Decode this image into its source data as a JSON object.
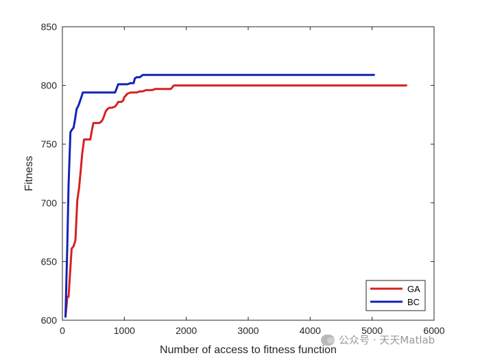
{
  "chart_data": {
    "type": "line",
    "title": "",
    "xlabel": "Number of access to fitness function",
    "ylabel": "Fitness",
    "xlim": [
      0,
      6000
    ],
    "ylim": [
      600,
      850
    ],
    "xticks": [
      0,
      1000,
      2000,
      3000,
      4000,
      5000,
      6000
    ],
    "yticks": [
      600,
      650,
      700,
      750,
      800,
      850
    ],
    "grid": false,
    "legend_position": "bottom-right",
    "series": [
      {
        "name": "GA",
        "color": "#d62020",
        "x": [
          50,
          80,
          100,
          130,
          150,
          180,
          210,
          240,
          270,
          300,
          320,
          350,
          370,
          400,
          420,
          450,
          480,
          500,
          520,
          550,
          580,
          600,
          640,
          660,
          700,
          730,
          760,
          800,
          850,
          880,
          900,
          950,
          980,
          1000,
          1050,
          1100,
          1130,
          1150,
          1200,
          1250,
          1300,
          1350,
          1400,
          1450,
          1500,
          1550,
          1600,
          1650,
          1700,
          1750,
          1800,
          5550
        ],
        "y": [
          603,
          620,
          620,
          645,
          661,
          663,
          668,
          702,
          713,
          730,
          742,
          754,
          754,
          754,
          754,
          754,
          763,
          768,
          768,
          768,
          768,
          768,
          770,
          772,
          778,
          780,
          781,
          781,
          782,
          784,
          786,
          786,
          787,
          790,
          793,
          794,
          794,
          794,
          794,
          795,
          795,
          796,
          796,
          796,
          797,
          797,
          797,
          797,
          797,
          797,
          800,
          800
        ]
      },
      {
        "name": "BC",
        "color": "#1022b8",
        "x": [
          50,
          80,
          100,
          130,
          150,
          180,
          200,
          230,
          260,
          300,
          330,
          360,
          400,
          450,
          500,
          550,
          600,
          700,
          800,
          850,
          880,
          900,
          950,
          1000,
          1050,
          1100,
          1130,
          1150,
          1170,
          1200,
          1250,
          1300,
          5030
        ],
        "y": [
          603,
          665,
          715,
          760,
          762,
          764,
          770,
          780,
          783,
          789,
          794,
          794,
          794,
          794,
          794,
          794,
          794,
          794,
          794,
          794,
          798,
          801,
          801,
          801,
          801,
          802,
          802,
          802,
          806,
          807,
          807,
          809,
          809
        ]
      }
    ]
  },
  "watermark": {
    "text": "公众号 · 天天Matlab",
    "icon": "wechat-icon"
  }
}
